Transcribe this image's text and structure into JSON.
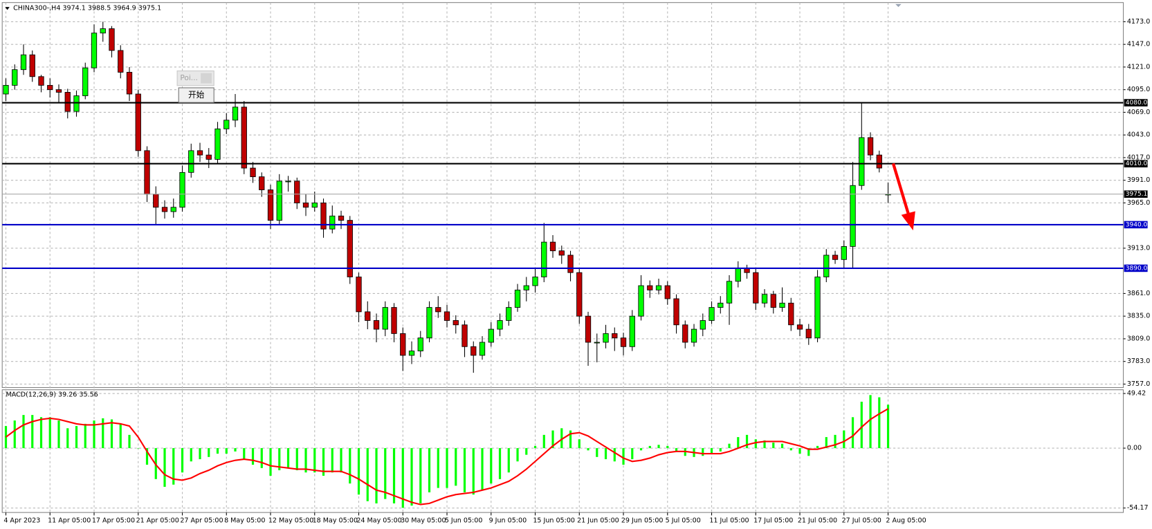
{
  "ui": {
    "popup_title": "Poi...",
    "button": "开始"
  },
  "chart_data": [
    {
      "type": "candlestick",
      "title": "CHINA300-,H4  3974.1 3988.5 3964.9 3975.1",
      "colors": {
        "up": "#00ff00",
        "down": "#c00000",
        "wick": "#000000"
      },
      "ylim": [
        3753,
        4195
      ],
      "yticks": [
        {
          "value": 4173,
          "label": "4173.0"
        },
        {
          "value": 4147,
          "label": "4147.0"
        },
        {
          "value": 4121,
          "label": "4121.0"
        },
        {
          "value": 4095,
          "label": "4095.0"
        },
        {
          "value": 4069,
          "label": "4069.0"
        },
        {
          "value": 4043,
          "label": "4043.0"
        },
        {
          "value": 4017,
          "label": "4017.0"
        },
        {
          "value": 3991,
          "label": "3991.0"
        },
        {
          "value": 3965,
          "label": "3965.0"
        },
        {
          "value": 3913,
          "label": "3913.0"
        },
        {
          "value": 3861,
          "label": "3861.0"
        },
        {
          "value": 3835,
          "label": "3835.0"
        },
        {
          "value": 3809,
          "label": "3809.0"
        },
        {
          "value": 3783,
          "label": "3783.0"
        },
        {
          "value": 3757,
          "label": "3757.0"
        }
      ],
      "grid": true,
      "levels": [
        {
          "value": 4080,
          "label": "4080.0",
          "color": "#000000",
          "label_color": "#000000"
        },
        {
          "value": 4010,
          "label": "4010.0",
          "color": "#000000",
          "label_color": "#000000"
        },
        {
          "value": 3975.1,
          "label": "3975.1",
          "color": "#a8a8a8",
          "label_color": "#000000"
        },
        {
          "value": 3940,
          "label": "3940.0",
          "color": "#0000c8",
          "label_color": "#0000c8"
        },
        {
          "value": 3890,
          "label": "3890.0",
          "color": "#0000c8",
          "label_color": "#0000c8"
        }
      ],
      "ohlc": [
        [
          4090,
          4108,
          4082,
          4100
        ],
        [
          4100,
          4124,
          4095,
          4118
        ],
        [
          4118,
          4147,
          4112,
          4135
        ],
        [
          4135,
          4140,
          4104,
          4110
        ],
        [
          4110,
          4112,
          4092,
          4100
        ],
        [
          4100,
          4108,
          4086,
          4095
        ],
        [
          4095,
          4101,
          4080,
          4092
        ],
        [
          4092,
          4096,
          4062,
          4070
        ],
        [
          4070,
          4094,
          4064,
          4088
        ],
        [
          4088,
          4126,
          4084,
          4120
        ],
        [
          4120,
          4170,
          4115,
          4160
        ],
        [
          4160,
          4173,
          4150,
          4165
        ],
        [
          4165,
          4168,
          4132,
          4140
        ],
        [
          4140,
          4146,
          4108,
          4115
        ],
        [
          4115,
          4121,
          4082,
          4090
        ],
        [
          4090,
          4095,
          4018,
          4025
        ],
        [
          4025,
          4030,
          3966,
          3975
        ],
        [
          3975,
          3984,
          3940,
          3960
        ],
        [
          3960,
          3968,
          3947,
          3955
        ],
        [
          3955,
          3970,
          3948,
          3960
        ],
        [
          3960,
          4008,
          3955,
          4000
        ],
        [
          4000,
          4033,
          3994,
          4025
        ],
        [
          4025,
          4034,
          4012,
          4020
        ],
        [
          4020,
          4028,
          4005,
          4015
        ],
        [
          4015,
          4058,
          4010,
          4050
        ],
        [
          4050,
          4068,
          4044,
          4060
        ],
        [
          4060,
          4090,
          4052,
          4075
        ],
        [
          4075,
          4082,
          3998,
          4005
        ],
        [
          4005,
          4012,
          3988,
          3995
        ],
        [
          3995,
          4000,
          3972,
          3980
        ],
        [
          3980,
          3986,
          3935,
          3945
        ],
        [
          3945,
          3998,
          3940,
          3990
        ],
        [
          3990,
          3996,
          3978,
          3990
        ],
        [
          3990,
          3994,
          3958,
          3965
        ],
        [
          3965,
          3975,
          3950,
          3960
        ],
        [
          3960,
          3978,
          3955,
          3965
        ],
        [
          3965,
          3970,
          3925,
          3935
        ],
        [
          3935,
          3962,
          3930,
          3950
        ],
        [
          3950,
          3956,
          3935,
          3945
        ],
        [
          3945,
          3950,
          3872,
          3880
        ],
        [
          3880,
          3885,
          3828,
          3840
        ],
        [
          3840,
          3852,
          3820,
          3830
        ],
        [
          3830,
          3838,
          3805,
          3820
        ],
        [
          3820,
          3852,
          3812,
          3845
        ],
        [
          3845,
          3850,
          3805,
          3815
        ],
        [
          3815,
          3822,
          3772,
          3790
        ],
        [
          3790,
          3806,
          3780,
          3795
        ],
        [
          3795,
          3818,
          3788,
          3810
        ],
        [
          3810,
          3852,
          3805,
          3845
        ],
        [
          3845,
          3858,
          3833,
          3840
        ],
        [
          3840,
          3848,
          3822,
          3830
        ],
        [
          3830,
          3836,
          3815,
          3825
        ],
        [
          3825,
          3830,
          3788,
          3800
        ],
        [
          3800,
          3806,
          3770,
          3790
        ],
        [
          3790,
          3812,
          3785,
          3805
        ],
        [
          3805,
          3828,
          3800,
          3820
        ],
        [
          3820,
          3838,
          3812,
          3830
        ],
        [
          3830,
          3852,
          3824,
          3845
        ],
        [
          3845,
          3872,
          3840,
          3865
        ],
        [
          3865,
          3880,
          3852,
          3870
        ],
        [
          3870,
          3890,
          3862,
          3880
        ],
        [
          3880,
          3942,
          3874,
          3920
        ],
        [
          3920,
          3928,
          3902,
          3910
        ],
        [
          3910,
          3916,
          3895,
          3905
        ],
        [
          3905,
          3910,
          3875,
          3885
        ],
        [
          3885,
          3890,
          3826,
          3835
        ],
        [
          3835,
          3840,
          3778,
          3805
        ],
        [
          3805,
          3815,
          3782,
          3805
        ],
        [
          3805,
          3825,
          3798,
          3815
        ],
        [
          3815,
          3822,
          3795,
          3810
        ],
        [
          3810,
          3816,
          3790,
          3800
        ],
        [
          3800,
          3842,
          3795,
          3835
        ],
        [
          3835,
          3882,
          3830,
          3870
        ],
        [
          3870,
          3876,
          3856,
          3865
        ],
        [
          3865,
          3878,
          3860,
          3870
        ],
        [
          3870,
          3875,
          3848,
          3855
        ],
        [
          3855,
          3860,
          3815,
          3825
        ],
        [
          3825,
          3830,
          3798,
          3805
        ],
        [
          3805,
          3826,
          3800,
          3820
        ],
        [
          3820,
          3838,
          3812,
          3830
        ],
        [
          3830,
          3852,
          3826,
          3845
        ],
        [
          3845,
          3858,
          3838,
          3850
        ],
        [
          3850,
          3882,
          3825,
          3875
        ],
        [
          3875,
          3898,
          3868,
          3890
        ],
        [
          3890,
          3894,
          3878,
          3885
        ],
        [
          3885,
          3890,
          3842,
          3850
        ],
        [
          3850,
          3866,
          3845,
          3860
        ],
        [
          3860,
          3864,
          3838,
          3845
        ],
        [
          3845,
          3868,
          3840,
          3850
        ],
        [
          3850,
          3856,
          3818,
          3825
        ],
        [
          3825,
          3832,
          3812,
          3820
        ],
        [
          3820,
          3826,
          3802,
          3810
        ],
        [
          3810,
          3888,
          3805,
          3880
        ],
        [
          3880,
          3912,
          3874,
          3905
        ],
        [
          3905,
          3910,
          3895,
          3900
        ],
        [
          3900,
          3922,
          3890,
          3915
        ],
        [
          3915,
          4012,
          3890,
          3985
        ],
        [
          3985,
          4080,
          3980,
          4040
        ],
        [
          4040,
          4046,
          4014,
          4020
        ],
        [
          4020,
          4025,
          4000,
          4005
        ],
        [
          3974.1,
          3988.5,
          3964.9,
          3975.1
        ]
      ]
    },
    {
      "type": "macd",
      "title": "MACD(12,26,9) 39.26 35.56",
      "ylim": [
        -58.2,
        52.8
      ],
      "yticks": [
        49.42,
        {
          "value": 0,
          "label": "0.00"
        },
        -54.17
      ],
      "xticks": [
        {
          "value": 0,
          "label": "4 Apr 2023"
        },
        {
          "value": 5,
          "label": "11 Apr 05:00"
        },
        {
          "value": 10,
          "label": "17 Apr 05:00"
        },
        {
          "value": 15,
          "label": "21 Apr 05:00"
        },
        {
          "value": 20,
          "label": "27 Apr 05:00"
        },
        {
          "value": 25,
          "label": "8 May 05:00"
        },
        {
          "value": 30,
          "label": "12 May 05:00"
        },
        {
          "value": 35,
          "label": "18 May 05:00"
        },
        {
          "value": 40,
          "label": "24 May 05:00"
        },
        {
          "value": 45,
          "label": "30 May 05:00"
        },
        {
          "value": 50,
          "label": "5 Jun 05:00"
        },
        {
          "value": 55,
          "label": "9 Jun 05:00"
        },
        {
          "value": 60,
          "label": "15 Jun 05:00"
        },
        {
          "value": 65,
          "label": "21 Jun 05:00"
        },
        {
          "value": 70,
          "label": "29 Jun 05:00"
        },
        {
          "value": 75,
          "label": "5 Jul 05:00"
        },
        {
          "value": 80,
          "label": "11 Jul 05:00"
        },
        {
          "value": 85,
          "label": "17 Jul 05:00"
        },
        {
          "value": 90,
          "label": "21 Jul 05:00"
        },
        {
          "value": 95,
          "label": "27 Jul 05:00"
        },
        {
          "value": 100,
          "label": "2 Aug 05:00"
        }
      ],
      "grid": true,
      "series": [
        {
          "type": "bar",
          "color": "#00ff00",
          "values": [
            20,
            25,
            30,
            30,
            28,
            28,
            25,
            18,
            20,
            22,
            25,
            27,
            26,
            22,
            12,
            0,
            -15,
            -28,
            -35,
            -33,
            -22,
            -12,
            -10,
            -8,
            -5,
            -5,
            -3,
            -10,
            -15,
            -18,
            -25,
            -20,
            -18,
            -20,
            -22,
            -22,
            -25,
            -22,
            -22,
            -32,
            -42,
            -48,
            -50,
            -46,
            -50,
            -54,
            -52,
            -50,
            -40,
            -36,
            -36,
            -34,
            -40,
            -42,
            -38,
            -32,
            -28,
            -22,
            -12,
            -6,
            2,
            12,
            16,
            18,
            16,
            8,
            -2,
            -8,
            -10,
            -12,
            -15,
            -10,
            -2,
            2,
            3,
            2,
            -3,
            -7,
            -8,
            -7,
            -5,
            -3,
            4,
            10,
            12,
            8,
            7,
            5,
            4,
            -2,
            -5,
            -7,
            2,
            10,
            12,
            16,
            28,
            42,
            48,
            46,
            39.26
          ]
        },
        {
          "type": "line",
          "color": "#ff0000",
          "values": [
            10,
            16,
            21,
            24,
            26,
            27,
            26,
            24,
            22,
            21,
            21,
            22,
            23,
            22,
            20,
            10,
            -3,
            -15,
            -24,
            -28,
            -29,
            -27,
            -23,
            -20,
            -16,
            -13,
            -11,
            -10,
            -11,
            -13,
            -16,
            -17,
            -18,
            -19,
            -19,
            -20,
            -21,
            -21,
            -21,
            -24,
            -28,
            -33,
            -38,
            -40,
            -43,
            -46,
            -49,
            -51,
            -50,
            -47,
            -44,
            -42,
            -41,
            -40,
            -38,
            -36,
            -33,
            -30,
            -25,
            -19,
            -12,
            -5,
            2,
            8,
            13,
            14,
            11,
            6,
            1,
            -4,
            -9,
            -12,
            -11,
            -9,
            -6,
            -4,
            -3,
            -3,
            -4,
            -5,
            -5,
            -5,
            -3,
            0,
            3,
            5,
            6,
            6,
            6,
            4,
            2,
            -1,
            -1,
            1,
            3,
            6,
            11,
            19,
            26,
            31,
            35.56
          ]
        }
      ]
    }
  ]
}
